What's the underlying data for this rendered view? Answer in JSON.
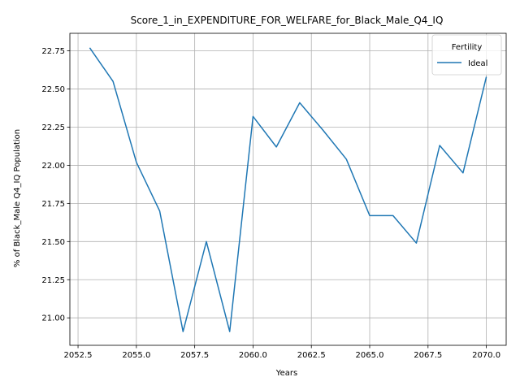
{
  "chart_data": {
    "type": "line",
    "title": "Score_1_in_EXPENDITURE_FOR_WELFARE_for_Black_Male_Q4_IQ",
    "xlabel": "Years",
    "ylabel": "% of Black_Male Q4_IQ Population",
    "xlim": [
      2052.15,
      2070.85
    ],
    "ylim": [
      20.82,
      22.865
    ],
    "xticks": [
      2052.5,
      2055.0,
      2057.5,
      2060.0,
      2062.5,
      2065.0,
      2067.5,
      2070.0
    ],
    "xtick_labels": [
      "2052.5",
      "2055.0",
      "2057.5",
      "2060.0",
      "2062.5",
      "2065.0",
      "2067.5",
      "2070.0"
    ],
    "yticks": [
      21.0,
      21.25,
      21.5,
      21.75,
      22.0,
      22.25,
      22.5,
      22.75
    ],
    "ytick_labels": [
      "21.00",
      "21.25",
      "21.50",
      "21.75",
      "22.00",
      "22.25",
      "22.50",
      "22.75"
    ],
    "grid": true,
    "legend": {
      "title": "Fertility",
      "position": "top-right"
    },
    "series": [
      {
        "name": "Ideal",
        "color": "#1f77b4",
        "x": [
          2053,
          2054,
          2055,
          2056,
          2057,
          2058,
          2059,
          2060,
          2061,
          2062,
          2063,
          2064,
          2065,
          2066,
          2067,
          2068,
          2069,
          2070
        ],
        "y": [
          22.77,
          22.55,
          22.02,
          21.7,
          20.91,
          21.5,
          20.91,
          22.32,
          22.12,
          22.41,
          22.23,
          22.04,
          21.67,
          21.67,
          21.49,
          22.13,
          21.95,
          22.58
        ]
      }
    ]
  }
}
